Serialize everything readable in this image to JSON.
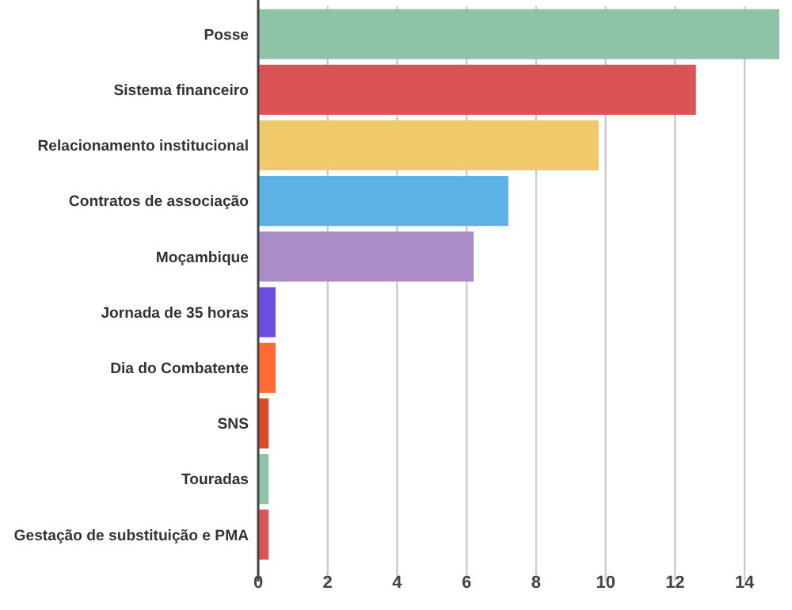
{
  "chart_data": {
    "type": "bar",
    "orientation": "horizontal",
    "categories": [
      "Posse",
      "Sistema financeiro",
      "Relacionamento institucional",
      "Contratos de associação",
      "Moçambique",
      "Jornada de 35 horas",
      "Dia do Combatente",
      "SNS",
      "Touradas",
      "Gestação de substituição e PMA"
    ],
    "values": [
      15,
      12.6,
      9.8,
      7.2,
      6.2,
      0.5,
      0.5,
      0.3,
      0.3,
      0.3
    ],
    "colors": [
      "#8dc3a7",
      "#dc5356",
      "#f0ca6a",
      "#5ab3e4",
      "#a98cc8",
      "#6b4fe0",
      "#ff6a33",
      "#e04a25",
      "#8dc3a7",
      "#dc5356"
    ],
    "xlim": [
      0,
      15
    ],
    "xticks": [
      0,
      2,
      4,
      6,
      8,
      10,
      12,
      14
    ],
    "grid": "x"
  }
}
